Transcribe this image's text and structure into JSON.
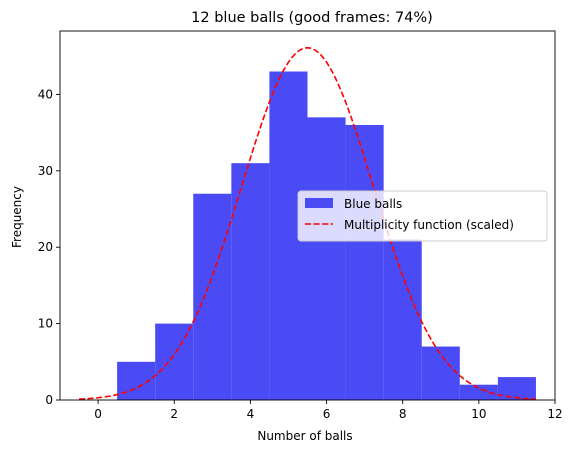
{
  "chart_data": {
    "type": "bar",
    "title": "12 blue balls (good frames: 74%)",
    "xlabel": "Number of balls",
    "ylabel": "Frequency",
    "xlim": [
      -1,
      12
    ],
    "ylim": [
      0,
      48.3
    ],
    "xticks": [
      0,
      2,
      4,
      6,
      8,
      10,
      12
    ],
    "yticks": [
      0,
      10,
      20,
      30,
      40
    ],
    "grid": false,
    "legend_position": "center-right",
    "bars": {
      "name": "Blue balls",
      "color": "#4b4bf6",
      "bin_centers": [
        1,
        2,
        3,
        4,
        5,
        6,
        7,
        8,
        9,
        10,
        11
      ],
      "bin_width": 1,
      "values": [
        5,
        10,
        27,
        31,
        43,
        37,
        36,
        21,
        7,
        2,
        3
      ]
    },
    "curve": {
      "name": "Multiplicity function (scaled)",
      "color": "#ff0000",
      "style": "dashed",
      "x_range": [
        -0.5,
        11.5
      ],
      "peak_x": 5.5,
      "peak_y": 46.1,
      "sigma": 1.73
    },
    "legend": [
      {
        "label": "Blue balls",
        "kind": "patch",
        "color": "#4b4bf6"
      },
      {
        "label": "Multiplicity function (scaled)",
        "kind": "dashed-line",
        "color": "#ff0000"
      }
    ]
  }
}
